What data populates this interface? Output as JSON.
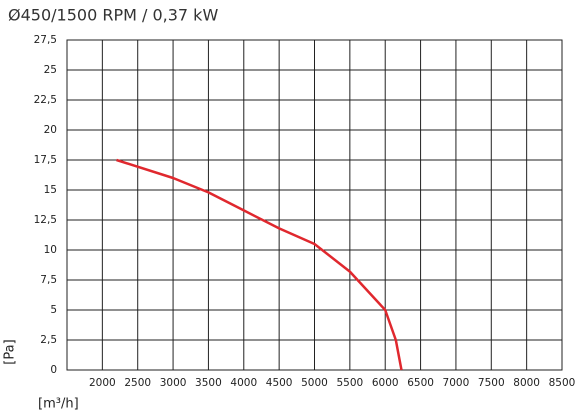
{
  "chart_data": {
    "type": "line",
    "title": "Ø450/1500 RPM / 0,37 kW",
    "xlabel": "[m³/h]",
    "ylabel": "[Pa]",
    "x": [
      2200,
      3000,
      3500,
      4000,
      4500,
      5000,
      5500,
      6000,
      6150,
      6230
    ],
    "series": [
      {
        "color": "#e0282e",
        "values": [
          17.5,
          16,
          14.8,
          13.3,
          11.8,
          10.5,
          8.2,
          5,
          2.5,
          0
        ]
      }
    ],
    "xlim": [
      1500,
      8500
    ],
    "xticks": [
      2000,
      2500,
      3000,
      3500,
      4000,
      4500,
      5000,
      5500,
      6000,
      6500,
      7000,
      7500,
      8000,
      8500
    ],
    "ylim": [
      0,
      27.5
    ],
    "yticks": [
      0,
      {
        "value": 2.5,
        "label": "2,5"
      },
      5,
      {
        "value": 7.5,
        "label": "7,5"
      },
      10,
      {
        "value": 12.5,
        "label": "12,5"
      },
      15,
      {
        "value": 17.5,
        "label": "17,5"
      },
      20,
      {
        "value": 22.5,
        "label": "22,5"
      },
      25,
      {
        "value": 27.5,
        "label": "27,5"
      }
    ],
    "grid": true
  }
}
